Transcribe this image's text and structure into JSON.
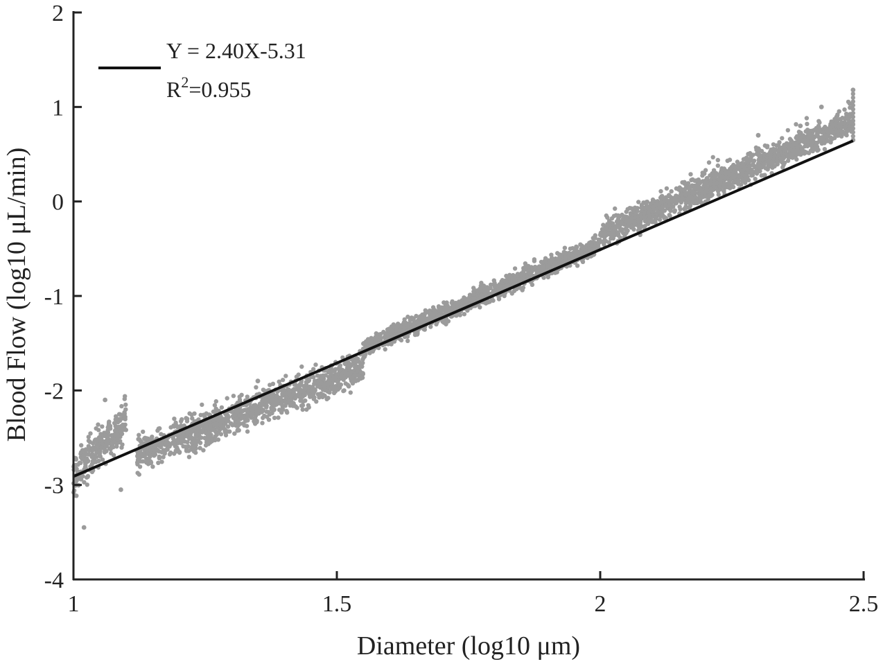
{
  "chart_data": {
    "type": "scatter",
    "xlabel": "Diameter (log10 μm)",
    "ylabel": "Blood Flow (log10 μL/min)",
    "xlim": [
      1,
      2.5
    ],
    "ylim": [
      -4,
      2
    ],
    "xticks": [
      1,
      1.5,
      2,
      2.5
    ],
    "yticks": [
      -4,
      -3,
      -2,
      -1,
      0,
      1,
      2
    ],
    "xtick_labels": [
      "1",
      "1.5",
      "2",
      "2.5"
    ],
    "ytick_labels": [
      "-4",
      "-3",
      "-2",
      "-1",
      "0",
      "1",
      "2"
    ],
    "grid": false,
    "legend_position": "top-left",
    "colors": {
      "points": "#9b9b9b",
      "fit_line": "#111111",
      "axes": "#222222"
    },
    "series": [
      {
        "type": "scatter",
        "band_center_lines": [
          {
            "x_range": [
              1.0,
              1.1
            ],
            "slope": 6.0,
            "intercept": -8.9,
            "spread": 0.22
          },
          {
            "x_range": [
              1.12,
              1.55
            ],
            "slope": 2.2,
            "intercept": -5.15,
            "spread": 0.18
          },
          {
            "x_range": [
              1.55,
              2.0
            ],
            "slope": 2.45,
            "intercept": -5.35,
            "spread": 0.1
          },
          {
            "x_range": [
              2.0,
              2.48
            ],
            "slope": 2.5,
            "intercept": -5.35,
            "spread": 0.14
          }
        ],
        "notable_points": [
          {
            "x": 1.02,
            "y": -3.45
          },
          {
            "x": 1.06,
            "y": -2.1
          },
          {
            "x": 1.09,
            "y": -3.05
          },
          {
            "x": 1.35,
            "y": -1.9
          },
          {
            "x": 2.3,
            "y": 0.7
          },
          {
            "x": 2.38,
            "y": 0.8
          },
          {
            "x": 2.42,
            "y": 1.0
          },
          {
            "x": 2.48,
            "y": 1.18
          },
          {
            "x": 2.48,
            "y": 0.65
          }
        ]
      },
      {
        "name": "Y = 2.40X-5.31",
        "type": "line",
        "slope": 2.4,
        "intercept": -5.31,
        "x": [
          1.0,
          2.48
        ],
        "y": [
          -2.91,
          0.642
        ]
      }
    ],
    "legend": {
      "equation": "Y = 2.40X-5.31",
      "r2_base": "R",
      "r2_exponent": "2",
      "r2_value": "=0.955"
    }
  }
}
